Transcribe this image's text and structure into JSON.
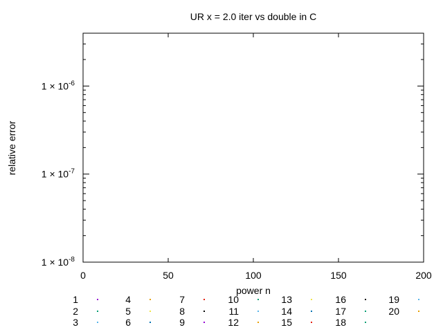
{
  "chart_data": {
    "type": "scatter",
    "title": "UR x = 2.0 iter vs double in C",
    "xlabel": "power n",
    "ylabel": "relative error",
    "xlim": [
      0,
      200
    ],
    "ylim_log10": [
      -8,
      -5.4
    ],
    "y_scale": "log",
    "grid": false,
    "legend_position": "bottom",
    "x_ticks": [
      {
        "value": 0,
        "label": "0"
      },
      {
        "value": 50,
        "label": "50"
      },
      {
        "value": 100,
        "label": "100"
      },
      {
        "value": 150,
        "label": "150"
      },
      {
        "value": 200,
        "label": "200"
      }
    ],
    "y_ticks": [
      {
        "exp": -6,
        "mantissa": "1 × 10",
        "power": "-6"
      },
      {
        "exp": -7,
        "mantissa": "1 × 10",
        "power": "-7"
      },
      {
        "exp": -8,
        "mantissa": "1 × 10",
        "power": "-8"
      }
    ],
    "series": [
      {
        "name": "1",
        "color": "#9400d3",
        "values": []
      },
      {
        "name": "2",
        "color": "#009e73",
        "values": []
      },
      {
        "name": "3",
        "color": "#56b4e9",
        "values": []
      },
      {
        "name": "4",
        "color": "#e69f00",
        "values": []
      },
      {
        "name": "5",
        "color": "#f0e442",
        "values": []
      },
      {
        "name": "6",
        "color": "#0072b2",
        "values": []
      },
      {
        "name": "7",
        "color": "#e51e10",
        "values": []
      },
      {
        "name": "8",
        "color": "#000000",
        "values": []
      },
      {
        "name": "9",
        "color": "#9400d3",
        "values": []
      },
      {
        "name": "10",
        "color": "#009e73",
        "values": []
      },
      {
        "name": "11",
        "color": "#56b4e9",
        "values": []
      },
      {
        "name": "12",
        "color": "#e69f00",
        "values": []
      },
      {
        "name": "13",
        "color": "#f0e442",
        "values": []
      },
      {
        "name": "14",
        "color": "#0072b2",
        "values": []
      },
      {
        "name": "15",
        "color": "#e51e10",
        "values": []
      },
      {
        "name": "16",
        "color": "#000000",
        "values": []
      },
      {
        "name": "17",
        "color": "#009e73",
        "values": []
      },
      {
        "name": "18",
        "color": "#009e73",
        "values": []
      },
      {
        "name": "19",
        "color": "#56b4e9",
        "values": []
      },
      {
        "name": "20",
        "color": "#e69f00",
        "values": []
      }
    ],
    "legend_layout": {
      "columns": [
        [
          "1",
          "2",
          "3"
        ],
        [
          "4",
          "5",
          "6"
        ],
        [
          "7",
          "8",
          "9"
        ],
        [
          "10",
          "11",
          "12"
        ],
        [
          "13",
          "14",
          "15"
        ],
        [
          "16",
          "17",
          "18"
        ],
        [
          "19",
          "20"
        ]
      ]
    }
  }
}
